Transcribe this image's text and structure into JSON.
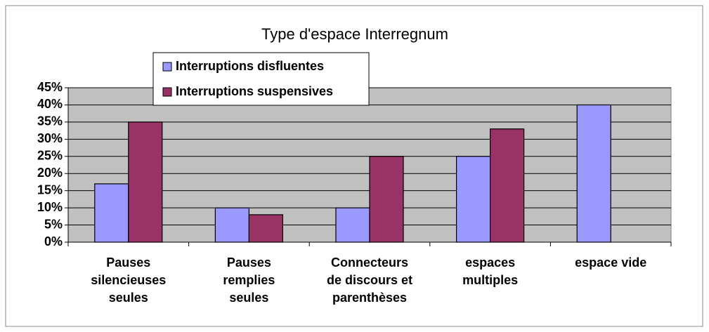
{
  "chart_data": {
    "type": "bar",
    "title": "Type d'espace Interregnum",
    "categories": [
      "Pauses\nsilencieuses\nseules",
      "Pauses\nremplies\nseules",
      "Connecteurs\nde discours et\nparenthèses",
      "espaces\nmultiples",
      "espace vide"
    ],
    "series": [
      {
        "name": "Interruptions disfluentes",
        "color": "#9999ff",
        "values": [
          17,
          10,
          10,
          25,
          40
        ]
      },
      {
        "name": "Interruptions suspensives",
        "color": "#993366",
        "values": [
          35,
          8,
          25,
          33,
          null
        ]
      }
    ],
    "ylim": [
      0,
      45
    ],
    "yticks": [
      {
        "value": 0,
        "label": "0%"
      },
      {
        "value": 5,
        "label": "5%"
      },
      {
        "value": 10,
        "label": "10%"
      },
      {
        "value": 15,
        "label": "15%"
      },
      {
        "value": 20,
        "label": "20%"
      },
      {
        "value": 25,
        "label": "25%"
      },
      {
        "value": 30,
        "label": "30%"
      },
      {
        "value": 35,
        "label": "35%"
      },
      {
        "value": 40,
        "label": "40%"
      },
      {
        "value": 45,
        "label": "45%"
      }
    ],
    "grid": true,
    "legend": "top-left"
  }
}
